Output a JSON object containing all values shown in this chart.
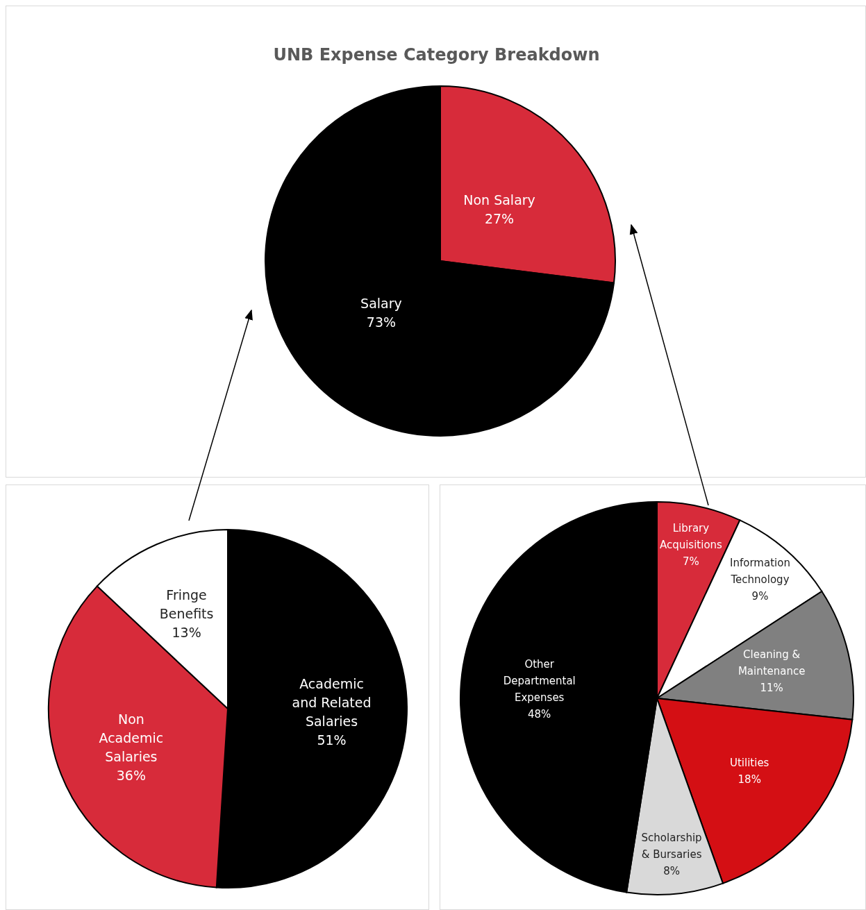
{
  "chart_data": [
    {
      "type": "pie",
      "title": "UNB Expense Category Breakdown",
      "categories": [
        "Non Salary",
        "Salary"
      ],
      "values": [
        27,
        73
      ],
      "colors": [
        "#d72b3a",
        "#000000"
      ],
      "value_labels": [
        "27%",
        "73%"
      ]
    },
    {
      "type": "pie",
      "categories": [
        "Academic and Related Salaries",
        "Non Academic Salaries",
        "Fringe Benefits"
      ],
      "values": [
        51,
        36,
        13
      ],
      "colors": [
        "#000000",
        "#d72b3a",
        "#ffffff"
      ],
      "value_labels": [
        "51%",
        "36%",
        "13%"
      ]
    },
    {
      "type": "pie",
      "categories": [
        "Library Acquisitions",
        "Information Technology",
        "Cleaning & Maintenance",
        "Utilities",
        "Scholarship & Bursaries",
        "Other Departmental Expenses"
      ],
      "values": [
        7,
        9,
        11,
        18,
        8,
        48
      ],
      "colors": [
        "#d72b3a",
        "#ffffff",
        "#808080",
        "#d40f14",
        "#d9d9d9",
        "#000000"
      ],
      "value_labels": [
        "7%",
        "9%",
        "11%",
        "18%",
        "8%",
        "48%"
      ]
    }
  ]
}
